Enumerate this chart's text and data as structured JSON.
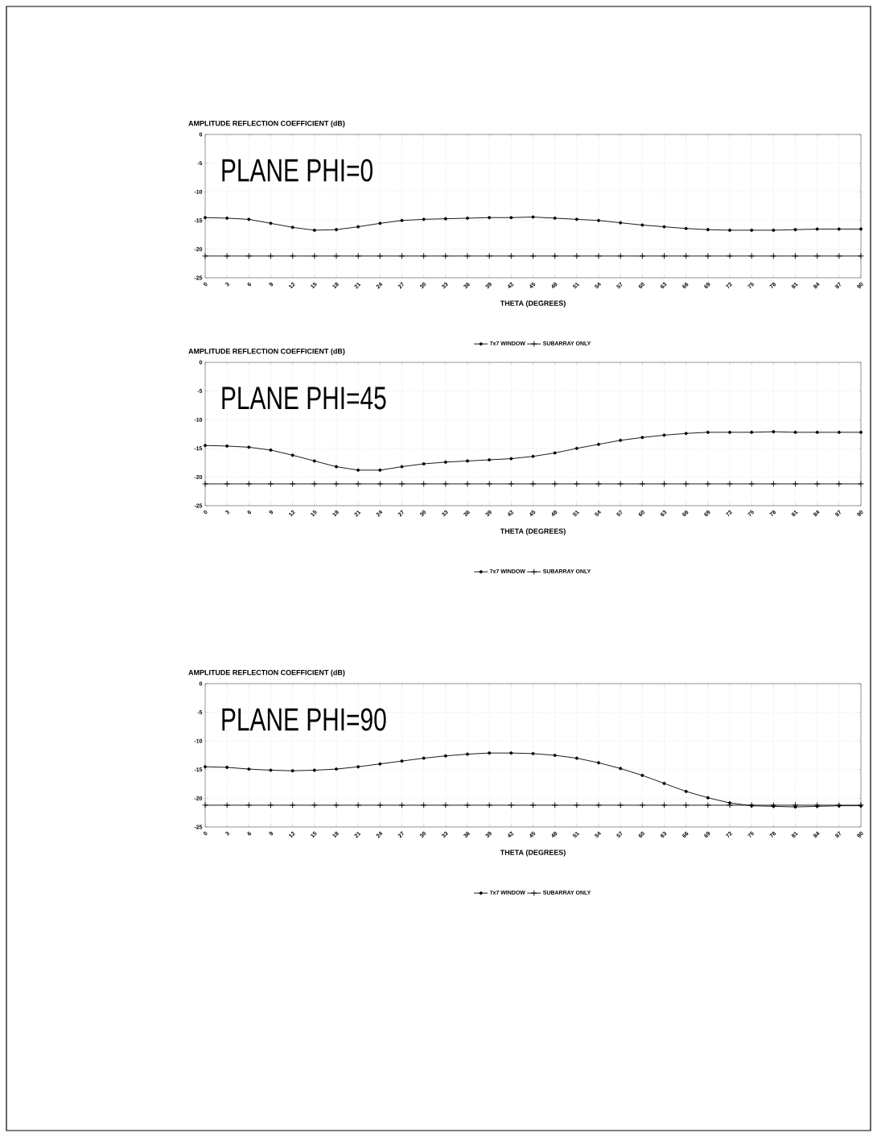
{
  "chart_data": [
    {
      "type": "line",
      "ylabel": "AMPLITUDE REFLECTION COEFFICIENT (dB)",
      "xlabel": "THETA (DEGREES)",
      "annotations": [
        "PLANE PHI=0"
      ],
      "categories": [
        "0",
        "3",
        "6",
        "9",
        "12",
        "15",
        "18",
        "21",
        "24",
        "27",
        "30",
        "33",
        "36",
        "39",
        "42",
        "45",
        "48",
        "51",
        "54",
        "57",
        "60",
        "63",
        "66",
        "69",
        "72",
        "75",
        "78",
        "81",
        "84",
        "87",
        "90"
      ],
      "series": [
        {
          "name": "7x7 WINDOW",
          "color": "#000000",
          "marker": "circle",
          "values": [
            -14.5,
            -14.6,
            -14.8,
            -15.5,
            -16.2,
            -16.7,
            -16.6,
            -16.1,
            -15.5,
            -15.0,
            -14.8,
            -14.7,
            -14.6,
            -14.5,
            -14.5,
            -14.4,
            -14.6,
            -14.8,
            -15.0,
            -15.4,
            -15.8,
            -16.1,
            -16.4,
            -16.6,
            -16.7,
            -16.7,
            -16.7,
            -16.6,
            -16.5,
            -16.5,
            -16.5
          ]
        },
        {
          "name": "SUBARRAY ONLY",
          "color": "#000000",
          "marker": "cross",
          "values": [
            -21.2,
            -21.2,
            -21.2,
            -21.2,
            -21.2,
            -21.2,
            -21.2,
            -21.2,
            -21.2,
            -21.2,
            -21.2,
            -21.2,
            -21.2,
            -21.2,
            -21.2,
            -21.2,
            -21.2,
            -21.2,
            -21.2,
            -21.2,
            -21.2,
            -21.2,
            -21.2,
            -21.2,
            -21.2,
            -21.2,
            -21.2,
            -21.2,
            -21.2,
            -21.2,
            -21.2
          ]
        }
      ],
      "ylim": [
        -25,
        0
      ],
      "yticks": [
        -25,
        -20,
        -15,
        -10,
        -5,
        0
      ],
      "grid": true,
      "legend": "bottom"
    },
    {
      "type": "line",
      "ylabel": "AMPLITUDE REFLECTION COEFFICIENT (dB)",
      "xlabel": "THETA (DEGREES)",
      "annotations": [
        "PLANE PHI=45"
      ],
      "categories": [
        "0",
        "3",
        "6",
        "9",
        "12",
        "15",
        "18",
        "21",
        "24",
        "27",
        "30",
        "33",
        "36",
        "39",
        "42",
        "45",
        "48",
        "51",
        "54",
        "57",
        "60",
        "63",
        "66",
        "69",
        "72",
        "75",
        "78",
        "81",
        "84",
        "87",
        "90"
      ],
      "series": [
        {
          "name": "7x7 WINDOW",
          "color": "#000000",
          "marker": "circle",
          "values": [
            -14.5,
            -14.6,
            -14.8,
            -15.3,
            -16.2,
            -17.2,
            -18.2,
            -18.8,
            -18.8,
            -18.2,
            -17.7,
            -17.4,
            -17.2,
            -17.0,
            -16.8,
            -16.4,
            -15.8,
            -15.0,
            -14.3,
            -13.6,
            -13.1,
            -12.7,
            -12.4,
            -12.2,
            -12.2,
            -12.2,
            -12.1,
            -12.2,
            -12.2,
            -12.2,
            -12.2
          ]
        },
        {
          "name": "SUBARRAY ONLY",
          "color": "#000000",
          "marker": "cross",
          "values": [
            -21.2,
            -21.2,
            -21.2,
            -21.2,
            -21.2,
            -21.2,
            -21.2,
            -21.2,
            -21.2,
            -21.2,
            -21.2,
            -21.2,
            -21.2,
            -21.2,
            -21.2,
            -21.2,
            -21.2,
            -21.2,
            -21.2,
            -21.2,
            -21.2,
            -21.2,
            -21.2,
            -21.2,
            -21.2,
            -21.2,
            -21.2,
            -21.2,
            -21.2,
            -21.2,
            -21.2
          ]
        }
      ],
      "ylim": [
        -25,
        0
      ],
      "yticks": [
        -25,
        -20,
        -15,
        -10,
        -5,
        0
      ],
      "grid": true,
      "legend": "bottom"
    },
    {
      "type": "line",
      "ylabel": "AMPLITUDE REFLECTION COEFFICIENT (dB)",
      "xlabel": "THETA (DEGREES)",
      "annotations": [
        "PLANE PHI=90"
      ],
      "categories": [
        "0",
        "3",
        "6",
        "9",
        "12",
        "15",
        "18",
        "21",
        "24",
        "27",
        "30",
        "33",
        "36",
        "39",
        "42",
        "45",
        "48",
        "51",
        "54",
        "57",
        "60",
        "63",
        "66",
        "69",
        "72",
        "75",
        "78",
        "81",
        "84",
        "87",
        "90"
      ],
      "series": [
        {
          "name": "7x7 WINDOW",
          "color": "#000000",
          "marker": "circle",
          "values": [
            -14.5,
            -14.6,
            -14.9,
            -15.1,
            -15.2,
            -15.1,
            -14.9,
            -14.5,
            -14.0,
            -13.5,
            -13.0,
            -12.6,
            -12.3,
            -12.1,
            -12.1,
            -12.2,
            -12.5,
            -13.0,
            -13.8,
            -14.8,
            -16.0,
            -17.4,
            -18.8,
            -19.9,
            -20.8,
            -21.3,
            -21.4,
            -21.5,
            -21.4,
            -21.3,
            -21.3
          ]
        },
        {
          "name": "SUBARRAY ONLY",
          "color": "#000000",
          "marker": "cross",
          "values": [
            -21.2,
            -21.2,
            -21.2,
            -21.2,
            -21.2,
            -21.2,
            -21.2,
            -21.2,
            -21.2,
            -21.2,
            -21.2,
            -21.2,
            -21.2,
            -21.2,
            -21.2,
            -21.2,
            -21.2,
            -21.2,
            -21.2,
            -21.2,
            -21.2,
            -21.2,
            -21.2,
            -21.2,
            -21.2,
            -21.2,
            -21.2,
            -21.2,
            -21.2,
            -21.2,
            -21.2
          ]
        }
      ],
      "ylim": [
        -25,
        0
      ],
      "yticks": [
        -25,
        -20,
        -15,
        -10,
        -5,
        0
      ],
      "grid": true,
      "legend": "bottom"
    }
  ]
}
